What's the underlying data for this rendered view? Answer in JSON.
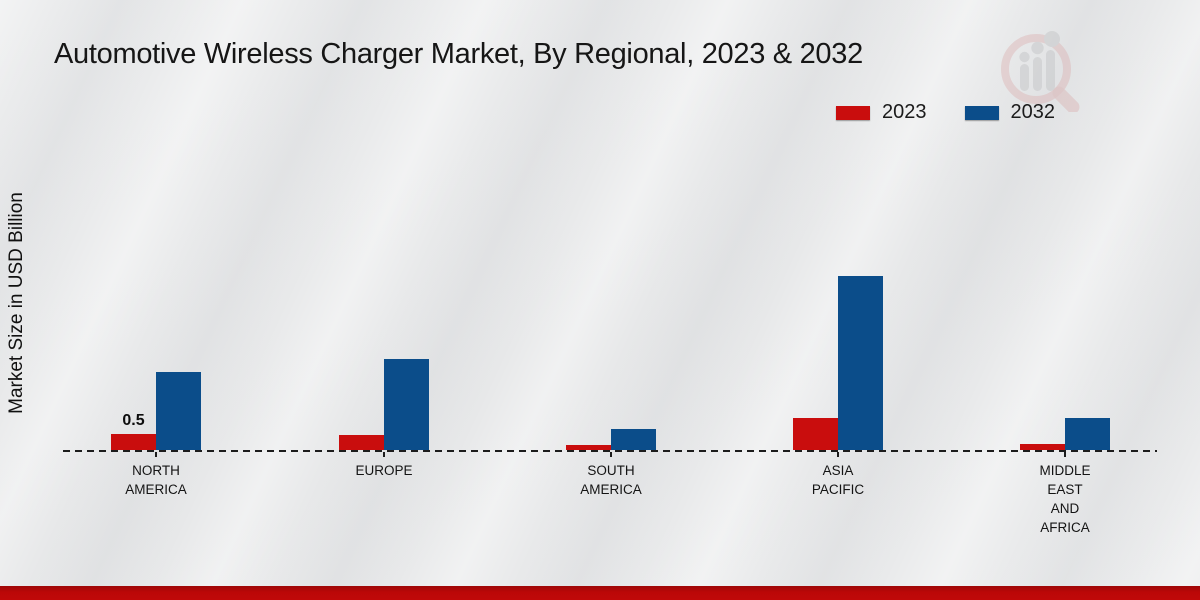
{
  "page": {
    "title": "Automotive Wireless Charger Market, By Regional, 2023 & 2032",
    "footer_bar_color": "#b30808",
    "background_color": "#e9eaeb",
    "watermark": "magnifier-bar-chart-logo"
  },
  "legend": {
    "position": "top-right",
    "items": [
      {
        "label": "2023",
        "color": "#c90d0d"
      },
      {
        "label": "2032",
        "color": "#0b4d8a"
      }
    ]
  },
  "chart_data": {
    "type": "bar",
    "title": "Automotive Wireless Charger Market, By Regional, 2023 & 2032",
    "xlabel": "",
    "ylabel": "Market Size in USD Billion",
    "categories": [
      "NORTH AMERICA",
      "EUROPE",
      "SOUTH AMERICA",
      "ASIA PACIFIC",
      "MIDDLE EAST AND AFRICA"
    ],
    "category_label_lines": [
      [
        "NORTH",
        "AMERICA"
      ],
      [
        "EUROPE"
      ],
      [
        "SOUTH",
        "AMERICA"
      ],
      [
        "ASIA",
        "PACIFIC"
      ],
      [
        "MIDDLE",
        "EAST",
        "AND",
        "AFRICA"
      ]
    ],
    "series": [
      {
        "name": "2023",
        "color": "#c90d0d",
        "values": [
          0.5,
          0.45,
          0.15,
          1.0,
          0.2
        ]
      },
      {
        "name": "2032",
        "color": "#0b4d8a",
        "values": [
          2.4,
          2.8,
          0.65,
          5.35,
          1.0
        ]
      }
    ],
    "annotations": [
      {
        "series": "2023",
        "category": "NORTH AMERICA",
        "text": "0.5"
      }
    ],
    "ylim": [
      0,
      5.5
    ],
    "grid": false,
    "axis_style": "dashed-baseline-only",
    "legend_position": "top-right"
  }
}
